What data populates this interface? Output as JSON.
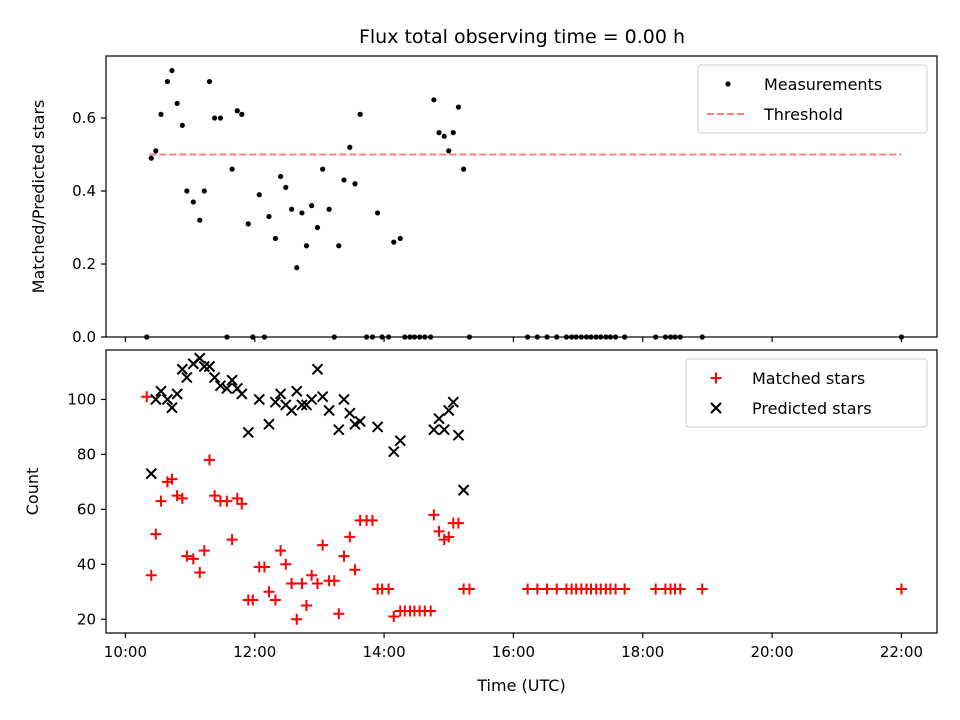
{
  "title": "Flux total observing time = 0.00 h",
  "chart_data": [
    {
      "type": "scatter",
      "ylabel": "Matched/Predicted stars",
      "xlim": [
        9.7,
        22.55
      ],
      "ylim": [
        0,
        0.77
      ],
      "yticks": [
        0.0,
        0.2,
        0.4,
        0.6
      ],
      "ytick_labels": [
        "0.0",
        "0.2",
        "0.4",
        "0.6"
      ],
      "xticks": [
        10,
        12,
        14,
        16,
        18,
        20,
        22
      ],
      "legend_position": "top-right",
      "legend": [
        {
          "label": "Measurements",
          "marker": "dot",
          "color": "#000000"
        },
        {
          "label": "Threshold",
          "marker": "dashed-line",
          "color": "#ff7f7f"
        }
      ],
      "threshold": {
        "value": 0.5,
        "x_range": [
          10.37,
          22.0
        ]
      },
      "series": [
        {
          "name": "Measurements",
          "points": [
            [
              10.33,
              0.0
            ],
            [
              10.4,
              0.49
            ],
            [
              10.47,
              0.51
            ],
            [
              10.55,
              0.61
            ],
            [
              10.65,
              0.7
            ],
            [
              10.72,
              0.73
            ],
            [
              10.8,
              0.64
            ],
            [
              10.88,
              0.58
            ],
            [
              10.95,
              0.4
            ],
            [
              11.05,
              0.37
            ],
            [
              11.15,
              0.32
            ],
            [
              11.22,
              0.4
            ],
            [
              11.3,
              0.7
            ],
            [
              11.38,
              0.6
            ],
            [
              11.47,
              0.6
            ],
            [
              11.57,
              0.0
            ],
            [
              11.65,
              0.46
            ],
            [
              11.73,
              0.62
            ],
            [
              11.8,
              0.61
            ],
            [
              11.9,
              0.31
            ],
            [
              11.97,
              0.0
            ],
            [
              12.07,
              0.39
            ],
            [
              12.15,
              0.0
            ],
            [
              12.22,
              0.33
            ],
            [
              12.32,
              0.27
            ],
            [
              12.4,
              0.44
            ],
            [
              12.48,
              0.41
            ],
            [
              12.57,
              0.35
            ],
            [
              12.65,
              0.19
            ],
            [
              12.73,
              0.34
            ],
            [
              12.8,
              0.25
            ],
            [
              12.88,
              0.36
            ],
            [
              12.97,
              0.3
            ],
            [
              13.05,
              0.46
            ],
            [
              13.15,
              0.35
            ],
            [
              13.23,
              0.0
            ],
            [
              13.3,
              0.25
            ],
            [
              13.38,
              0.43
            ],
            [
              13.47,
              0.52
            ],
            [
              13.55,
              0.42
            ],
            [
              13.63,
              0.61
            ],
            [
              13.73,
              0.0
            ],
            [
              13.82,
              0.0
            ],
            [
              13.9,
              0.34
            ],
            [
              13.97,
              0.0
            ],
            [
              14.07,
              0.0
            ],
            [
              14.15,
              0.26
            ],
            [
              14.25,
              0.27
            ],
            [
              14.32,
              0.0
            ],
            [
              14.4,
              0.0
            ],
            [
              14.47,
              0.0
            ],
            [
              14.55,
              0.0
            ],
            [
              14.63,
              0.0
            ],
            [
              14.72,
              0.0
            ],
            [
              14.77,
              0.65
            ],
            [
              14.85,
              0.56
            ],
            [
              14.93,
              0.55
            ],
            [
              15.0,
              0.51
            ],
            [
              15.07,
              0.56
            ],
            [
              15.15,
              0.63
            ],
            [
              15.23,
              0.46
            ],
            [
              15.32,
              0.0
            ],
            [
              16.22,
              0.0
            ],
            [
              16.37,
              0.0
            ],
            [
              16.52,
              0.0
            ],
            [
              16.67,
              0.0
            ],
            [
              16.82,
              0.0
            ],
            [
              16.9,
              0.0
            ],
            [
              16.97,
              0.0
            ],
            [
              17.05,
              0.0
            ],
            [
              17.13,
              0.0
            ],
            [
              17.2,
              0.0
            ],
            [
              17.28,
              0.0
            ],
            [
              17.35,
              0.0
            ],
            [
              17.43,
              0.0
            ],
            [
              17.5,
              0.0
            ],
            [
              17.58,
              0.0
            ],
            [
              17.72,
              0.0
            ],
            [
              18.2,
              0.0
            ],
            [
              18.35,
              0.0
            ],
            [
              18.43,
              0.0
            ],
            [
              18.5,
              0.0
            ],
            [
              18.58,
              0.0
            ],
            [
              18.92,
              0.0
            ],
            [
              22.0,
              0.0
            ]
          ]
        }
      ]
    },
    {
      "type": "scatter",
      "xlabel": "Time (UTC)",
      "ylabel": "Count",
      "xlim": [
        9.7,
        22.55
      ],
      "ylim": [
        15,
        118
      ],
      "yticks": [
        20,
        40,
        60,
        80,
        100
      ],
      "ytick_labels": [
        "20",
        "40",
        "60",
        "80",
        "100"
      ],
      "xticks": [
        10,
        12,
        14,
        16,
        18,
        20,
        22
      ],
      "xtick_labels": [
        "10:00",
        "12:00",
        "14:00",
        "16:00",
        "18:00",
        "20:00",
        "22:00"
      ],
      "legend_position": "top-right",
      "legend": [
        {
          "label": "Matched stars",
          "marker": "plus",
          "color": "#ff0000"
        },
        {
          "label": "Predicted stars",
          "marker": "x",
          "color": "#000000"
        }
      ],
      "series": [
        {
          "name": "Matched stars",
          "points": [
            [
              10.33,
              101
            ],
            [
              10.4,
              36
            ],
            [
              10.47,
              51
            ],
            [
              10.55,
              63
            ],
            [
              10.65,
              70
            ],
            [
              10.72,
              71
            ],
            [
              10.8,
              65
            ],
            [
              10.88,
              64
            ],
            [
              10.95,
              43
            ],
            [
              11.05,
              42
            ],
            [
              11.15,
              37
            ],
            [
              11.22,
              45
            ],
            [
              11.3,
              78
            ],
            [
              11.38,
              65
            ],
            [
              11.47,
              63
            ],
            [
              11.57,
              63
            ],
            [
              11.65,
              49
            ],
            [
              11.73,
              64
            ],
            [
              11.8,
              62
            ],
            [
              11.9,
              27
            ],
            [
              11.97,
              27
            ],
            [
              12.07,
              39
            ],
            [
              12.15,
              39
            ],
            [
              12.22,
              30
            ],
            [
              12.32,
              27
            ],
            [
              12.4,
              45
            ],
            [
              12.48,
              40
            ],
            [
              12.57,
              33
            ],
            [
              12.65,
              20
            ],
            [
              12.73,
              33
            ],
            [
              12.8,
              25
            ],
            [
              12.88,
              36
            ],
            [
              12.97,
              33
            ],
            [
              13.05,
              47
            ],
            [
              13.15,
              34
            ],
            [
              13.23,
              34
            ],
            [
              13.3,
              22
            ],
            [
              13.38,
              43
            ],
            [
              13.47,
              50
            ],
            [
              13.55,
              38
            ],
            [
              13.63,
              56
            ],
            [
              13.73,
              56
            ],
            [
              13.82,
              56
            ],
            [
              13.9,
              31
            ],
            [
              13.97,
              31
            ],
            [
              14.07,
              31
            ],
            [
              14.15,
              21
            ],
            [
              14.25,
              23
            ],
            [
              14.32,
              23
            ],
            [
              14.4,
              23
            ],
            [
              14.47,
              23
            ],
            [
              14.55,
              23
            ],
            [
              14.63,
              23
            ],
            [
              14.72,
              23
            ],
            [
              14.77,
              58
            ],
            [
              14.85,
              52
            ],
            [
              14.93,
              49
            ],
            [
              15.0,
              50
            ],
            [
              15.07,
              55
            ],
            [
              15.15,
              55
            ],
            [
              15.23,
              31
            ],
            [
              15.32,
              31
            ],
            [
              16.22,
              31
            ],
            [
              16.37,
              31
            ],
            [
              16.52,
              31
            ],
            [
              16.67,
              31
            ],
            [
              16.82,
              31
            ],
            [
              16.9,
              31
            ],
            [
              16.97,
              31
            ],
            [
              17.05,
              31
            ],
            [
              17.13,
              31
            ],
            [
              17.2,
              31
            ],
            [
              17.28,
              31
            ],
            [
              17.35,
              31
            ],
            [
              17.43,
              31
            ],
            [
              17.5,
              31
            ],
            [
              17.58,
              31
            ],
            [
              17.72,
              31
            ],
            [
              18.2,
              31
            ],
            [
              18.35,
              31
            ],
            [
              18.43,
              31
            ],
            [
              18.5,
              31
            ],
            [
              18.58,
              31
            ],
            [
              18.92,
              31
            ],
            [
              22.0,
              31
            ]
          ]
        },
        {
          "name": "Predicted stars",
          "points": [
            [
              10.4,
              73
            ],
            [
              10.47,
              100
            ],
            [
              10.55,
              103
            ],
            [
              10.65,
              100
            ],
            [
              10.72,
              97
            ],
            [
              10.8,
              102
            ],
            [
              10.88,
              111
            ],
            [
              10.95,
              108
            ],
            [
              11.05,
              113
            ],
            [
              11.15,
              115
            ],
            [
              11.22,
              112
            ],
            [
              11.3,
              112
            ],
            [
              11.38,
              108
            ],
            [
              11.47,
              105
            ],
            [
              11.57,
              104
            ],
            [
              11.65,
              107
            ],
            [
              11.73,
              104
            ],
            [
              11.8,
              102
            ],
            [
              11.9,
              88
            ],
            [
              12.07,
              100
            ],
            [
              12.22,
              91
            ],
            [
              12.32,
              99
            ],
            [
              12.4,
              102
            ],
            [
              12.48,
              98
            ],
            [
              12.57,
              96
            ],
            [
              12.65,
              103
            ],
            [
              12.73,
              98
            ],
            [
              12.8,
              98
            ],
            [
              12.88,
              100
            ],
            [
              12.97,
              111
            ],
            [
              13.05,
              101
            ],
            [
              13.15,
              96
            ],
            [
              13.3,
              89
            ],
            [
              13.38,
              100
            ],
            [
              13.47,
              95
            ],
            [
              13.55,
              91
            ],
            [
              13.63,
              92
            ],
            [
              13.9,
              90
            ],
            [
              14.15,
              81
            ],
            [
              14.25,
              85
            ],
            [
              14.77,
              89
            ],
            [
              14.85,
              93
            ],
            [
              14.93,
              89
            ],
            [
              15.0,
              96
            ],
            [
              15.07,
              99
            ],
            [
              15.15,
              87
            ],
            [
              15.23,
              67
            ]
          ]
        }
      ]
    }
  ]
}
